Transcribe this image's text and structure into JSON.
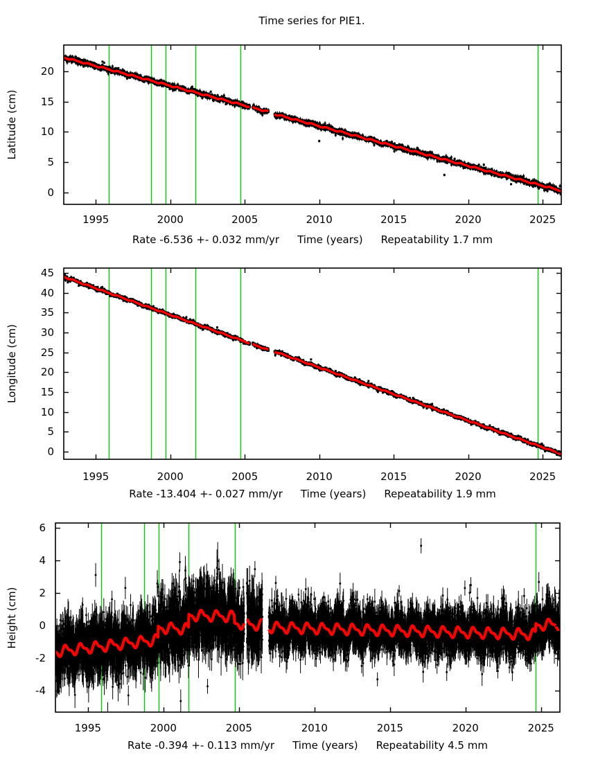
{
  "title": "Time series for PIE1.",
  "colors": {
    "background": "#ffffff",
    "data_points": "#000000",
    "model_line": "#ff0000",
    "event_line": "#00cc00",
    "axis": "#000000"
  },
  "chart_data": [
    {
      "type": "scatter",
      "panel": "latitude",
      "ylabel": "Latitude (cm)",
      "xlabel": "Time (years)",
      "rate_label": "Rate -6.536 +- 0.032 mm/yr",
      "repeatability_label": "Repeatability 1.7 mm",
      "xlim": [
        1992.85,
        2026.25
      ],
      "ylim": [
        -1.95,
        24.35
      ],
      "xticks": [
        1995,
        2000,
        2005,
        2010,
        2015,
        2020,
        2025
      ],
      "yticks": [
        0,
        5,
        10,
        15,
        20
      ],
      "event_lines": [
        1995.87,
        1998.72,
        1999.7,
        2001.68,
        2004.71,
        2024.65
      ],
      "data_range": [
        1992.87,
        2026.22
      ],
      "sample_step": 0.01,
      "seed": 11,
      "point_size": 3,
      "model_width": 3.5,
      "annual_amp": 0.09,
      "gaps": [
        [
          2005.35,
          2005.52
        ],
        [
          2006.6,
          2006.99
        ]
      ],
      "model_points": [
        [
          1992.85,
          22.3
        ],
        [
          2006.6,
          13.32
        ],
        [
          2006.99,
          12.95
        ],
        [
          2026.25,
          0.3
        ]
      ],
      "eras": [
        {
          "until": 2100,
          "noise": 0.2,
          "ebar": 0.28
        }
      ],
      "outliers": [
        [
          2010.0,
          8.5
        ],
        [
          2018.4,
          2.9
        ]
      ]
    },
    {
      "type": "scatter",
      "panel": "longitude",
      "ylabel": "Longitude (cm)",
      "xlabel": "Time (years)",
      "rate_label": "Rate -13.404 +- 0.027 mm/yr",
      "repeatability_label": "Repeatability 1.9 mm",
      "xlim": [
        1992.85,
        2026.25
      ],
      "ylim": [
        -1.95,
        46.2
      ],
      "xticks": [
        1995,
        2000,
        2005,
        2010,
        2015,
        2020,
        2025
      ],
      "yticks": [
        0,
        5,
        10,
        15,
        20,
        25,
        30,
        35,
        40,
        45
      ],
      "event_lines": [
        1995.87,
        1998.72,
        1999.7,
        2001.68,
        2004.71,
        2024.65
      ],
      "data_range": [
        1992.87,
        2026.22
      ],
      "sample_step": 0.01,
      "seed": 22,
      "point_size": 3,
      "model_width": 3.5,
      "annual_amp": 0.1,
      "gaps": [
        [
          2005.35,
          2005.52
        ],
        [
          2006.6,
          2006.99
        ]
      ],
      "model_points": [
        [
          1992.85,
          44.0
        ],
        [
          2006.6,
          25.58
        ],
        [
          2006.99,
          25.2
        ],
        [
          2026.25,
          -0.6
        ]
      ],
      "eras": [
        {
          "until": 2100,
          "noise": 0.22,
          "ebar": 0.3
        }
      ],
      "outliers": [
        [
          2009.45,
          23.2
        ]
      ]
    },
    {
      "type": "scatter",
      "panel": "height",
      "ylabel": "Height (cm)",
      "xlabel": "Time (years)",
      "rate_label": "Rate -0.394 +- 0.113 mm/yr",
      "repeatability_label": "Repeatability 4.5 mm",
      "xlim": [
        1992.85,
        2026.25
      ],
      "ylim": [
        -5.33,
        6.3
      ],
      "xticks": [
        1995,
        2000,
        2005,
        2010,
        2015,
        2020,
        2025
      ],
      "yticks": [
        -4,
        -2,
        0,
        2,
        4,
        6
      ],
      "event_lines": [
        1995.87,
        1998.72,
        1999.7,
        2001.68,
        2004.71,
        2024.65
      ],
      "data_range": [
        1992.87,
        2026.22
      ],
      "sample_step": 0.004,
      "seed": 33,
      "point_size": 2.6,
      "model_width": 4.2,
      "annual_amp": 0.27,
      "gaps": [
        [
          2005.35,
          2005.52
        ],
        [
          2006.55,
          2006.98
        ]
      ],
      "model_points": [
        [
          1992.85,
          -1.62
        ],
        [
          1999.64,
          -0.88
        ],
        [
          1999.66,
          -0.15
        ],
        [
          2001.66,
          -0.22
        ],
        [
          2001.68,
          0.62
        ],
        [
          2004.69,
          0.55
        ],
        [
          2004.71,
          0.12
        ],
        [
          2006.55,
          0.02
        ],
        [
          2007.0,
          -0.12
        ],
        [
          2024.63,
          -0.55
        ],
        [
          2024.66,
          0.02
        ],
        [
          2026.25,
          0.08
        ]
      ],
      "eras": [
        {
          "until": 1999.66,
          "noise": 0.8,
          "ebar": 0.7
        },
        {
          "until": 2006.6,
          "noise": 0.95,
          "ebar": 0.8
        },
        {
          "until": 2100,
          "noise": 0.62,
          "ebar": 0.58
        }
      ],
      "outliers": [
        [
          2017.06,
          4.9
        ],
        [
          2019.96,
          2.3
        ]
      ]
    }
  ]
}
